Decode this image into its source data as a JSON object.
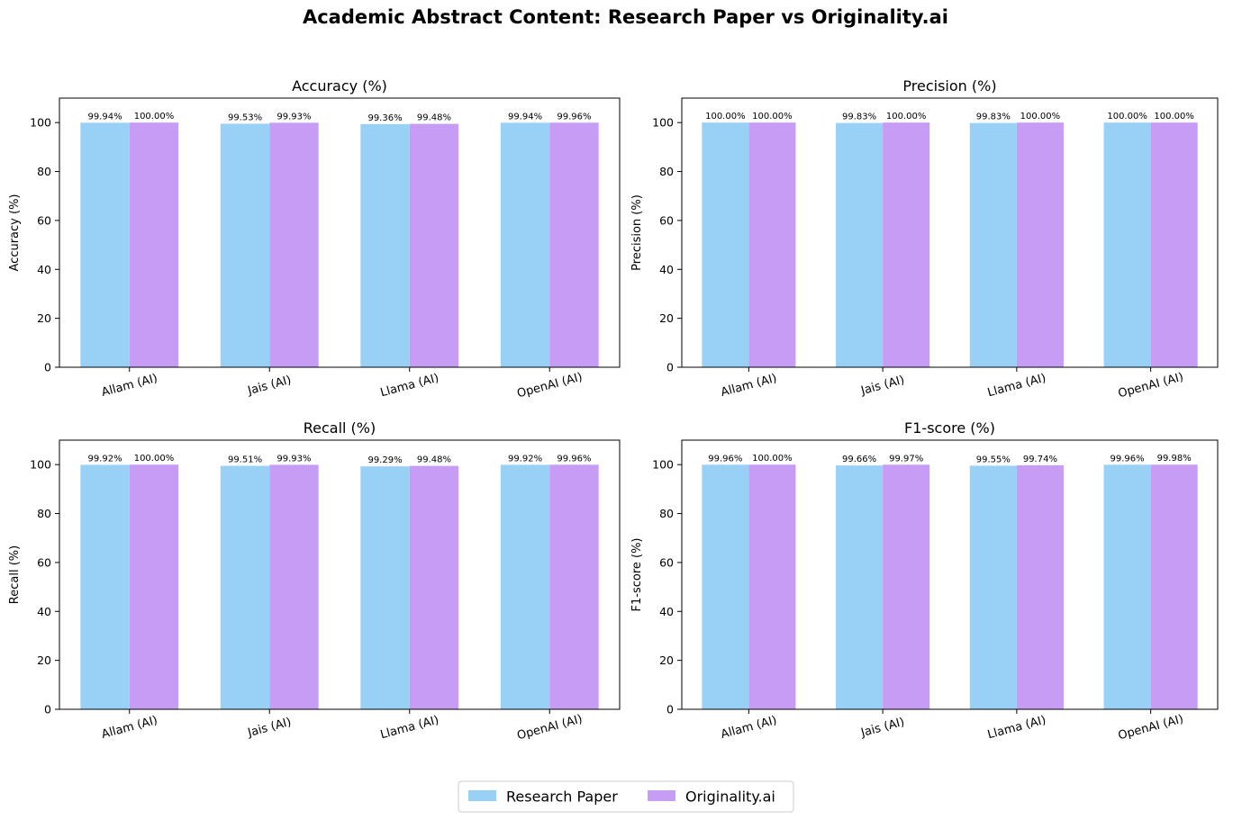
{
  "figure": {
    "title": "Academic Abstract Content: Research Paper vs Originality.ai"
  },
  "legend": {
    "placement": "bottom-center",
    "entries": [
      {
        "name": "Research Paper",
        "color": "#99d1f6"
      },
      {
        "name": "Originality.ai",
        "color": "#c79cf4"
      }
    ]
  },
  "chart_data": [
    {
      "type": "bar",
      "title": "Accuracy (%)",
      "xlabel": "",
      "ylabel": "Accuracy (%)",
      "ylim": [
        0,
        110
      ],
      "yticks": [
        0,
        20,
        40,
        60,
        80,
        100
      ],
      "grid": false,
      "categories": [
        "Allam (AI)",
        "Jais (AI)",
        "Llama (AI)",
        "OpenAI (AI)"
      ],
      "series": [
        {
          "name": "Research Paper",
          "values": [
            99.94,
            99.53,
            99.36,
            99.94
          ],
          "labels": [
            "99.94%",
            "99.53%",
            "99.36%",
            "99.94%"
          ]
        },
        {
          "name": "Originality.ai",
          "values": [
            100.0,
            99.93,
            99.48,
            99.96
          ],
          "labels": [
            "100.00%",
            "99.93%",
            "99.48%",
            "99.96%"
          ]
        }
      ]
    },
    {
      "type": "bar",
      "title": "Precision (%)",
      "xlabel": "",
      "ylabel": "Precision (%)",
      "ylim": [
        0,
        110
      ],
      "yticks": [
        0,
        20,
        40,
        60,
        80,
        100
      ],
      "grid": false,
      "categories": [
        "Allam (AI)",
        "Jais (AI)",
        "Llama (AI)",
        "OpenAI (AI)"
      ],
      "series": [
        {
          "name": "Research Paper",
          "values": [
            100.0,
            99.83,
            99.83,
            100.0
          ],
          "labels": [
            "100.00%",
            "99.83%",
            "99.83%",
            "100.00%"
          ]
        },
        {
          "name": "Originality.ai",
          "values": [
            100.0,
            100.0,
            100.0,
            100.0
          ],
          "labels": [
            "100.00%",
            "100.00%",
            "100.00%",
            "100.00%"
          ]
        }
      ]
    },
    {
      "type": "bar",
      "title": "Recall (%)",
      "xlabel": "",
      "ylabel": "Recall (%)",
      "ylim": [
        0,
        110
      ],
      "yticks": [
        0,
        20,
        40,
        60,
        80,
        100
      ],
      "grid": false,
      "categories": [
        "Allam (AI)",
        "Jais (AI)",
        "Llama (AI)",
        "OpenAI (AI)"
      ],
      "series": [
        {
          "name": "Research Paper",
          "values": [
            99.92,
            99.51,
            99.29,
            99.92
          ],
          "labels": [
            "99.92%",
            "99.51%",
            "99.29%",
            "99.92%"
          ]
        },
        {
          "name": "Originality.ai",
          "values": [
            100.0,
            99.93,
            99.48,
            99.96
          ],
          "labels": [
            "100.00%",
            "99.93%",
            "99.48%",
            "99.96%"
          ]
        }
      ]
    },
    {
      "type": "bar",
      "title": "F1-score (%)",
      "xlabel": "",
      "ylabel": "F1-score (%)",
      "ylim": [
        0,
        110
      ],
      "yticks": [
        0,
        20,
        40,
        60,
        80,
        100
      ],
      "grid": false,
      "categories": [
        "Allam (AI)",
        "Jais (AI)",
        "Llama (AI)",
        "OpenAI (AI)"
      ],
      "series": [
        {
          "name": "Research Paper",
          "values": [
            99.96,
            99.66,
            99.55,
            99.96
          ],
          "labels": [
            "99.96%",
            "99.66%",
            "99.55%",
            "99.96%"
          ]
        },
        {
          "name": "Originality.ai",
          "values": [
            100.0,
            99.97,
            99.74,
            99.98
          ],
          "labels": [
            "100.00%",
            "99.97%",
            "99.74%",
            "99.98%"
          ]
        }
      ]
    }
  ]
}
